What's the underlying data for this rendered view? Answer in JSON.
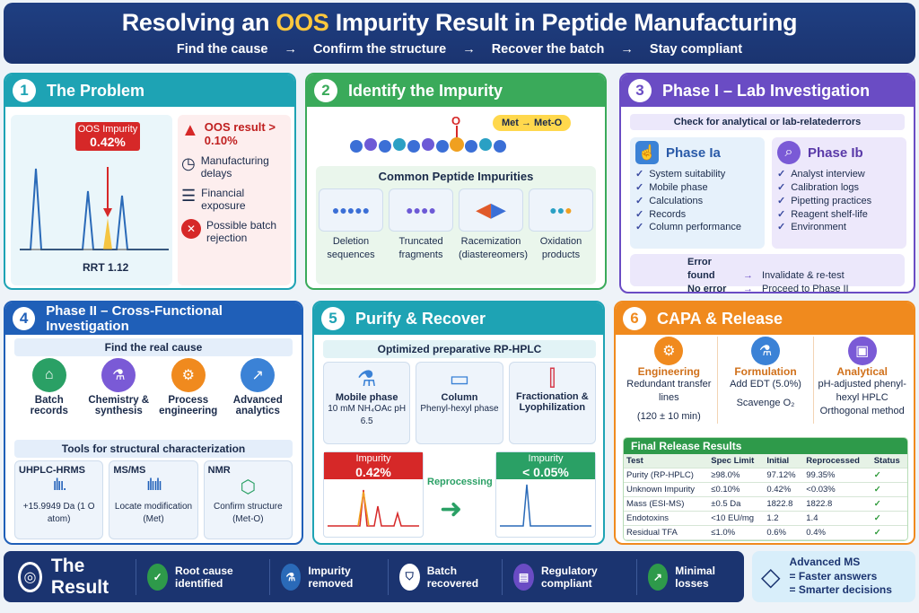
{
  "header": {
    "title_pre": "Resolving an ",
    "title_hl": "OOS",
    "title_post": " Impurity Result in Peptide Manufacturing",
    "flow": [
      "Find the cause",
      "→",
      "Confirm the structure",
      "→",
      "Recover the batch",
      "→",
      "Stay compliant"
    ]
  },
  "p1": {
    "num": "1",
    "title": "The Problem",
    "callout_title": "OOS Impurity",
    "callout_value": "0.42%",
    "rrt": "RRT 1.12",
    "items": [
      {
        "icon": "warning-icon",
        "text": "OOS result > 0.10%"
      },
      {
        "icon": "clock-icon",
        "text": "Manufacturing delays"
      },
      {
        "icon": "coins-icon",
        "text": "Financial exposure"
      },
      {
        "icon": "reject-icon",
        "text": "Possible batch rejection"
      }
    ]
  },
  "p2": {
    "num": "2",
    "title": "Identify the Impurity",
    "o_label": "O",
    "tag": "Met → Met-O",
    "common": "Common Peptide Impurities",
    "impurities": [
      "Deletion sequences",
      "Truncated fragments",
      "Racemization (diastereomers)",
      "Oxidation products"
    ]
  },
  "p3": {
    "num": "3",
    "title": "Phase I – Lab Investigation",
    "check": "Check for analytical or lab-relatederrors",
    "ia_title": "Phase Ia",
    "ia_items": [
      "System suitability",
      "Mobile phase",
      "Calculations",
      "Records",
      "Column performance"
    ],
    "ib_title": "Phase Ib",
    "ib_items": [
      "Analyst interview",
      "Calibration logs",
      "Pipetting practices",
      "Reagent shelf-life",
      "Environment"
    ],
    "f1_a": "Error found",
    "f1_b": "Invalidate & re-test",
    "f2_a": "No error",
    "f2_b": "Proceed to Phase II"
  },
  "p4": {
    "num": "4",
    "title": "Phase II – Cross-Functional Investigation",
    "find": "Find the real cause",
    "causes": [
      "Batch records",
      "Chemistry & synthesis",
      "Process engineering",
      "Advanced analytics"
    ],
    "tools": "Tools for structural characterization",
    "t1_title": "UHPLC-HRMS",
    "t1_text": "+15.9949 Da (1 O atom)",
    "t2_title": "MS/MS",
    "t2_text": "Locate modification (Met)",
    "t3_title": "NMR",
    "t3_text": "Confirm structure (Met-O)"
  },
  "p5": {
    "num": "5",
    "title": "Purify & Recover",
    "opt": "Optimized preparative RP-HPLC",
    "m1_title": "Mobile phase",
    "m1_text": "10 mM NH₄OAc pH 6.5",
    "m2_title": "Column",
    "m2_text": "Phenyl-hexyl phase",
    "m3_title": "Fractionation & Lyophilization",
    "before_label": "Impurity",
    "before_value": "0.42%",
    "arrow": "Reprocessing",
    "after_label": "Impurity",
    "after_value": "< 0.05%"
  },
  "p6": {
    "num": "6",
    "title": "CAPA & Release",
    "c1_title": "Engineering",
    "c1_text": "Redundant transfer lines",
    "c1_sub": "(120 ± 10 min)",
    "c2_title": "Formulation",
    "c2_text": "Add EDT (5.0%)",
    "c2_sub": "Scavenge O₂",
    "c3_title": "Analytical",
    "c3_text": "pH-adjusted phenyl-hexyl HPLC Orthogonal method",
    "final": "Final Release Results",
    "cols": [
      "Test",
      "Spec Limit",
      "Initial",
      "Reprocessed",
      "Status"
    ],
    "rows": [
      [
        "Purity (RP-HPLC)",
        "≥98.0%",
        "97.12%",
        "99.35%",
        "✓"
      ],
      [
        "Unknown Impurity",
        "≤0.10%",
        "0.42%",
        "<0.03%",
        "✓"
      ],
      [
        "Mass (ESI-MS)",
        "±0.5 Da",
        "1822.8",
        "1822.8",
        "✓"
      ],
      [
        "Endotoxins",
        "<10 EU/mg",
        "1.2",
        "1.4",
        "✓"
      ],
      [
        "Residual TFA",
        "≤1.0%",
        "0.6%",
        "0.4%",
        "✓"
      ]
    ]
  },
  "result": {
    "title": "The Result",
    "items": [
      "Root cause identified",
      "Impurity removed",
      "Batch recovered",
      "Regulatory compliant",
      "Minimal losses"
    ]
  },
  "adv": {
    "l1": "Advanced MS",
    "l2": "= Faster answers",
    "l3": "= Smarter decisions"
  }
}
